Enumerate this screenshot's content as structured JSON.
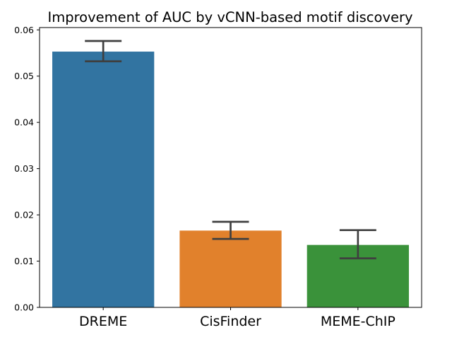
{
  "chart_data": {
    "type": "bar",
    "title": "Improvement of AUC by vCNN-based motif discovery",
    "xlabel": "",
    "ylabel": "",
    "categories": [
      "DREME",
      "CisFinder",
      "MEME-ChIP"
    ],
    "values": [
      0.0553,
      0.0166,
      0.0135
    ],
    "error_bars": [
      {
        "low": 0.0532,
        "high": 0.0576
      },
      {
        "low": 0.0148,
        "high": 0.0185
      },
      {
        "low": 0.0106,
        "high": 0.0167
      }
    ],
    "colors": [
      "#3274a1",
      "#e1812c",
      "#3a923a"
    ],
    "error_bar_color": "#3f3f3f",
    "ylim": [
      0,
      0.0605
    ],
    "yticks": [
      0,
      0.01,
      0.02,
      0.03,
      0.04,
      0.05,
      0.06
    ],
    "ytick_labels": [
      "0.00",
      "0.01",
      "0.02",
      "0.03",
      "0.04",
      "0.05",
      "0.06"
    ],
    "grid": false,
    "legend": "none"
  }
}
